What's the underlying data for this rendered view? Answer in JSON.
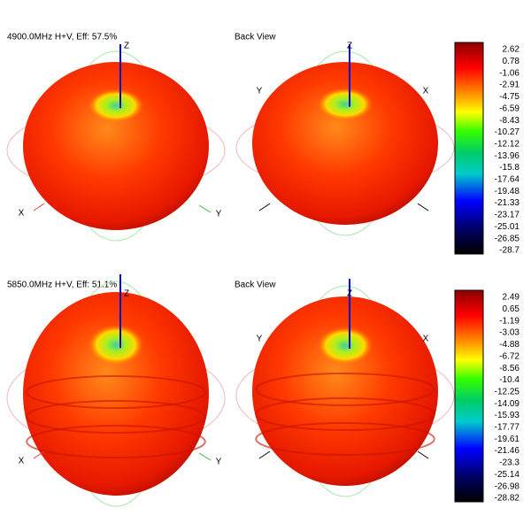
{
  "panels": [
    {
      "title": "4900.0MHz H+V, Eff: 57.5%",
      "back_view": "Back View",
      "front_axes": {
        "z": "Z",
        "x": "X",
        "y": "Y"
      },
      "back_axes": {
        "z": "Z",
        "y": "Y",
        "x": "X"
      },
      "scale": [
        2.62,
        0.78,
        -1.06,
        -2.91,
        -4.75,
        -6.59,
        -8.43,
        -10.27,
        -12.12,
        -13.96,
        -15.8,
        -17.64,
        -19.48,
        -21.33,
        -23.17,
        -25.01,
        -26.85,
        -28.7
      ]
    },
    {
      "title": "5850.0MHz H+V, Eff: 51.1%",
      "back_view": "Back View",
      "front_axes": {
        "z": "Z",
        "x": "X",
        "y": "Y"
      },
      "back_axes": {
        "z": "Z",
        "y": "Y",
        "x": "X"
      },
      "scale": [
        2.49,
        0.65,
        -1.19,
        -3.03,
        -4.88,
        -6.72,
        -8.56,
        -10.4,
        -12.25,
        -14.09,
        -15.93,
        -17.77,
        -19.61,
        -21.46,
        -23.3,
        -25.14,
        -26.98,
        -28.82
      ]
    }
  ]
}
